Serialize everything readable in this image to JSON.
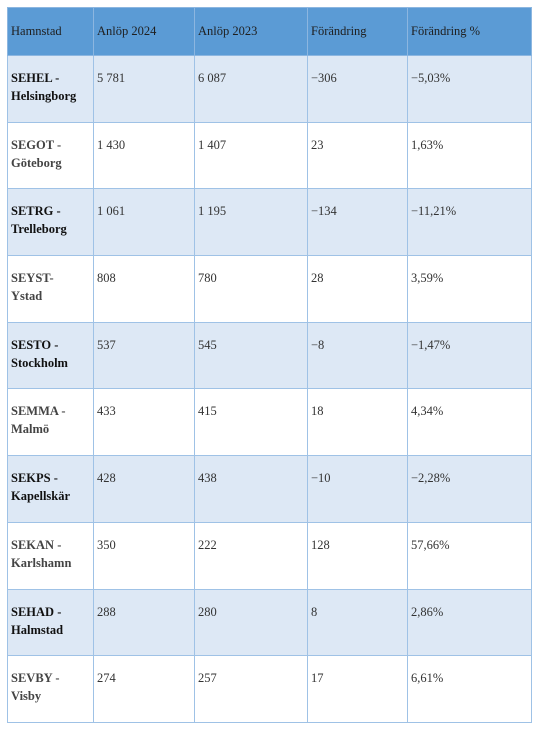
{
  "table": {
    "headers": [
      "Hamnstad",
      "Anlöp 2024",
      "Anlöp  2023",
      "Förändring",
      "Förändring %"
    ],
    "rows": [
      {
        "code": "SEHEL -",
        "city": "Helsingborg",
        "anlop_2024": "5 781",
        "anlop_2023": "6 087",
        "change": "−306",
        "change_pct": "−5,03%"
      },
      {
        "code": "SEGOT -",
        "city": "Göteborg",
        "anlop_2024": "1 430",
        "anlop_2023": "1 407",
        "change": "23",
        "change_pct": "1,63%"
      },
      {
        "code": "SETRG -",
        "city": "Trelleborg",
        "anlop_2024": "1 061",
        "anlop_2023": "1 195",
        "change": "−134",
        "change_pct": "−11,21%"
      },
      {
        "code": "SEYST-",
        "city": "Ystad",
        "anlop_2024": "808",
        "anlop_2023": "780",
        "change": "28",
        "change_pct": "3,59%"
      },
      {
        "code": "SESTO -",
        "city": "Stockholm",
        "anlop_2024": "537",
        "anlop_2023": "545",
        "change": "−8",
        "change_pct": "−1,47%"
      },
      {
        "code": "SEMMA -",
        "city": "Malmö",
        "anlop_2024": "433",
        "anlop_2023": "415",
        "change": "18",
        "change_pct": "4,34%"
      },
      {
        "code": "SEKPS -",
        "city": "Kapellskär",
        "anlop_2024": "428",
        "anlop_2023": "438",
        "change": "−10",
        "change_pct": "−2,28%"
      },
      {
        "code": "SEKAN -",
        "city": "Karlshamn",
        "anlop_2024": "350",
        "anlop_2023": "222",
        "change": "128",
        "change_pct": "57,66%"
      },
      {
        "code": "SEHAD -",
        "city": "Halmstad",
        "anlop_2024": "288",
        "anlop_2023": "280",
        "change": "8",
        "change_pct": "2,86%"
      },
      {
        "code": "SEVBY -",
        "city": "Visby",
        "anlop_2024": "274",
        "anlop_2023": "257",
        "change": "17",
        "change_pct": "6,61%"
      }
    ]
  }
}
